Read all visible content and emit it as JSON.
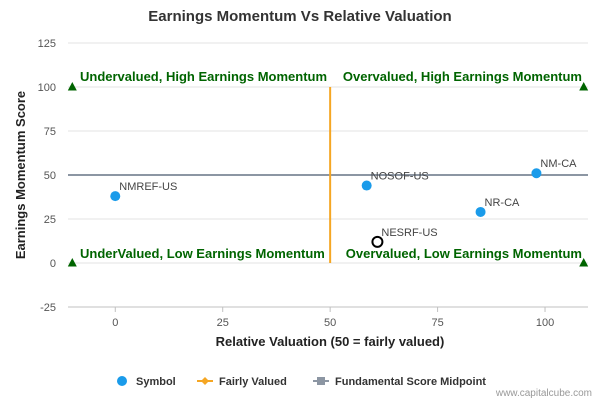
{
  "chart_data": {
    "type": "scatter",
    "title": "Earnings Momentum Vs Relative Valuation",
    "xlabel": "Relative Valuation (50 = fairly valued)",
    "ylabel": "Earnings Momentum Score",
    "xlim": [
      -11,
      110
    ],
    "ylim": [
      -25,
      125
    ],
    "x_ticks": [
      0,
      25,
      50,
      75,
      100
    ],
    "y_ticks": [
      -25,
      0,
      25,
      50,
      75,
      100,
      125
    ],
    "grid": "horizontal",
    "points": [
      {
        "label": "NMREF-US",
        "x": 0,
        "y": 38,
        "marker": "filled"
      },
      {
        "label": "NOSOF-US",
        "x": 58.5,
        "y": 44,
        "marker": "filled"
      },
      {
        "label": "NM-CA",
        "x": 98,
        "y": 51,
        "marker": "filled"
      },
      {
        "label": "NR-CA",
        "x": 85,
        "y": 29,
        "marker": "filled"
      },
      {
        "label": "NESRF-US",
        "x": 61,
        "y": 12,
        "marker": "hollow"
      }
    ],
    "fairly_valued_line": {
      "x": 50,
      "y_range": [
        0,
        100
      ]
    },
    "midpoint_line": {
      "y": 50,
      "x_range": [
        -11,
        110
      ]
    },
    "quadrant_markers": [
      {
        "x": -10,
        "y": 100
      },
      {
        "x": 109,
        "y": 100
      },
      {
        "x": -10,
        "y": 0
      },
      {
        "x": 109,
        "y": 0
      }
    ],
    "quadrant_labels": {
      "top_left": "Undervalued, High Earnings Momentum",
      "top_right": "Overvalued, High Earnings Momentum",
      "bottom_left": "UnderValued, Low Earnings Momentum",
      "bottom_right": "Overvalued, Low Earnings Momentum"
    },
    "legend": {
      "placement": "bottom",
      "items": [
        {
          "name": "Symbol",
          "kind": "dot"
        },
        {
          "name": "Fairly Valued",
          "kind": "line-diamond"
        },
        {
          "name": "Fundamental Score Midpoint",
          "kind": "line-square"
        }
      ]
    },
    "colors": {
      "symbol": "#1a9bea",
      "fairly_valued": "#f5a623",
      "midpoint": "#8c96a3",
      "quadrant_text": "#006400",
      "grid": "#e3e3e3"
    }
  },
  "credit": "www.capitalcube.com"
}
